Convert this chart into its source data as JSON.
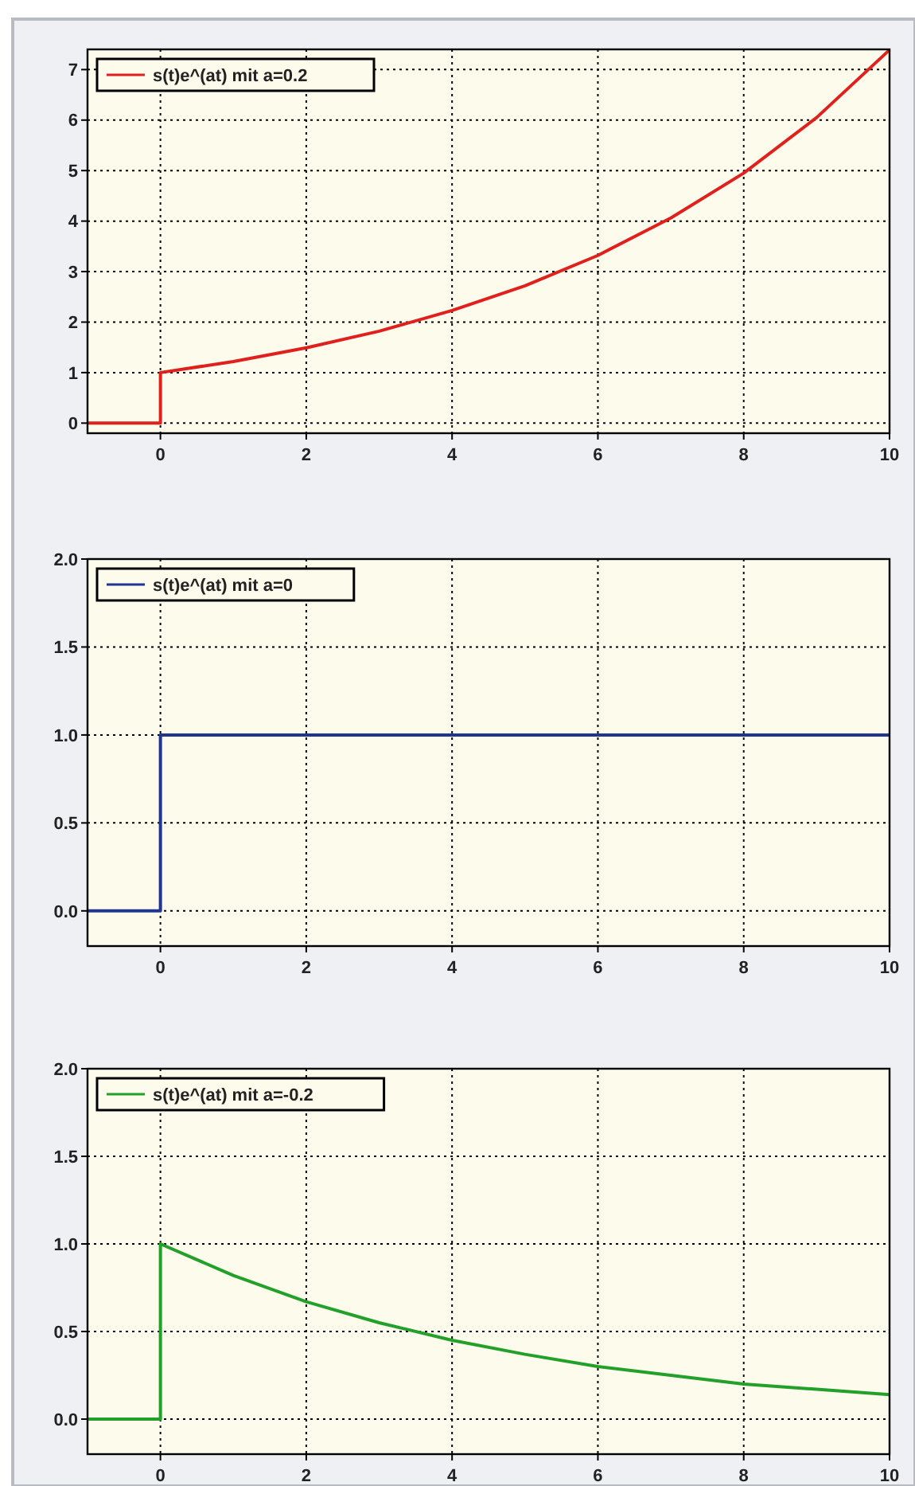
{
  "chart_data": [
    {
      "type": "line",
      "x": [
        -1,
        0,
        0,
        1,
        2,
        3,
        4,
        5,
        6,
        7,
        8,
        9,
        10
      ],
      "series": [
        {
          "name": "s(t)e^(at) mit a=0.2",
          "color": "#e0201c",
          "values": [
            0,
            0,
            1,
            1.22,
            1.49,
            1.82,
            2.23,
            2.72,
            3.32,
            4.06,
            4.95,
            6.05,
            7.39
          ]
        }
      ],
      "xlim": [
        -1,
        10
      ],
      "xticks": [
        0,
        2,
        4,
        6,
        8,
        10
      ],
      "ylim": [
        -0.2,
        7.4
      ],
      "yticks": [
        0,
        1,
        2,
        3,
        4,
        5,
        6,
        7
      ],
      "grid": true,
      "legend": "top left",
      "line_style": "solid"
    },
    {
      "type": "line",
      "x": [
        -1,
        0,
        0,
        10
      ],
      "series": [
        {
          "name": "s(t)e^(at) mit a=0",
          "color": "#1f3590",
          "values": [
            0,
            0,
            1,
            1
          ]
        }
      ],
      "xlim": [
        -1,
        10
      ],
      "xticks": [
        0,
        2,
        4,
        6,
        8,
        10
      ],
      "ylim": [
        -0.2,
        2.0
      ],
      "yticks": [
        {
          "value": 0,
          "label": "0.0"
        },
        {
          "value": 0.5,
          "label": "0.5"
        },
        {
          "value": 1,
          "label": "1.0"
        },
        {
          "value": 1.5,
          "label": "1.5"
        },
        {
          "value": 2,
          "label": "2.0"
        }
      ],
      "grid": true,
      "legend": "top left",
      "line_style": "solid"
    },
    {
      "type": "line",
      "x": [
        -1,
        0,
        0,
        1,
        2,
        3,
        4,
        5,
        6,
        7,
        8,
        9,
        10
      ],
      "series": [
        {
          "name": "s(t)e^(at) mit a=-0.2",
          "color": "#22a02a",
          "values": [
            0,
            0,
            1,
            0.82,
            0.67,
            0.55,
            0.45,
            0.37,
            0.3,
            0.25,
            0.2,
            0.17,
            0.14
          ]
        }
      ],
      "xlim": [
        -1,
        10
      ],
      "xticks": [
        0,
        2,
        4,
        6,
        8,
        10
      ],
      "ylim": [
        -0.2,
        2.0
      ],
      "yticks": [
        {
          "value": 0,
          "label": "0.0"
        },
        {
          "value": 0.5,
          "label": "0.5"
        },
        {
          "value": 1,
          "label": "1.0"
        },
        {
          "value": 1.5,
          "label": "1.5"
        },
        {
          "value": 2,
          "label": "2.0"
        }
      ],
      "grid": true,
      "legend": "top left",
      "line_style": "solid"
    }
  ]
}
